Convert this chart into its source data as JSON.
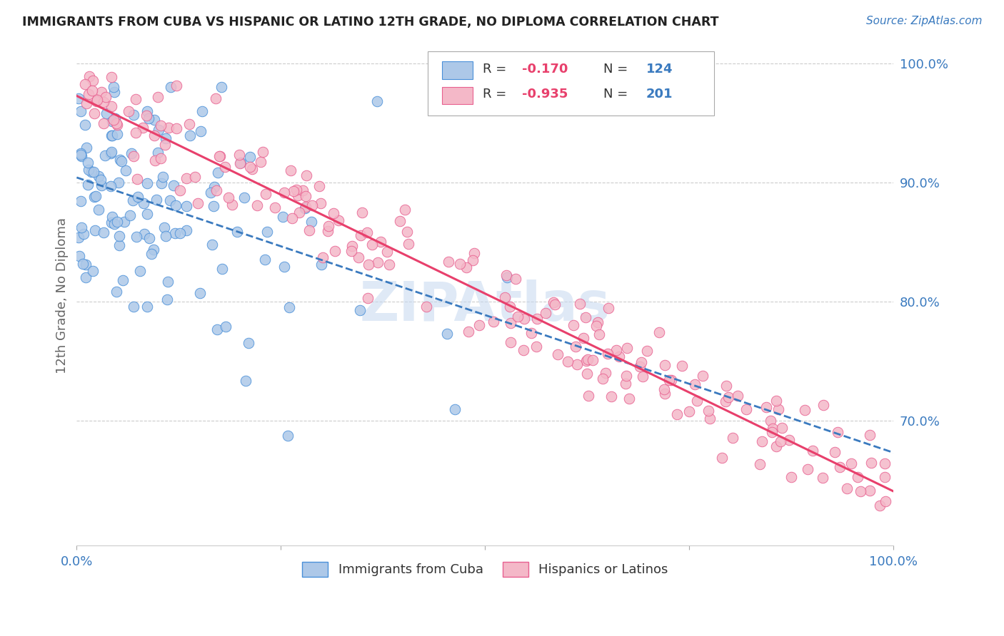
{
  "title": "IMMIGRANTS FROM CUBA VS HISPANIC OR LATINO 12TH GRADE, NO DIPLOMA CORRELATION CHART",
  "source": "Source: ZipAtlas.com",
  "ylabel": "12th Grade, No Diploma",
  "xlim": [
    0.0,
    1.0
  ],
  "ylim": [
    0.595,
    1.015
  ],
  "x_tick_labels": [
    "0.0%",
    "",
    "",
    "",
    "100.0%"
  ],
  "x_tick_vals": [
    0.0,
    0.25,
    0.5,
    0.75,
    1.0
  ],
  "y_tick_vals": [
    0.7,
    0.8,
    0.9,
    1.0
  ],
  "y_tick_labels": [
    "70.0%",
    "80.0%",
    "90.0%",
    "100.0%"
  ],
  "blue_R": "-0.170",
  "blue_N": "124",
  "pink_R": "-0.935",
  "pink_N": "201",
  "blue_fill": "#adc8e8",
  "pink_fill": "#f4b8c8",
  "blue_edge": "#4a90d9",
  "pink_edge": "#e86090",
  "blue_line": "#3a7abf",
  "pink_line": "#e8406c",
  "legend_label_blue": "Immigrants from Cuba",
  "legend_label_pink": "Hispanics or Latinos",
  "watermark": "ZIPAtlas",
  "bg": "#ffffff",
  "grid_color": "#cccccc",
  "title_color": "#222222",
  "axis_label_color": "#666666",
  "tick_color": "#3a7abf"
}
